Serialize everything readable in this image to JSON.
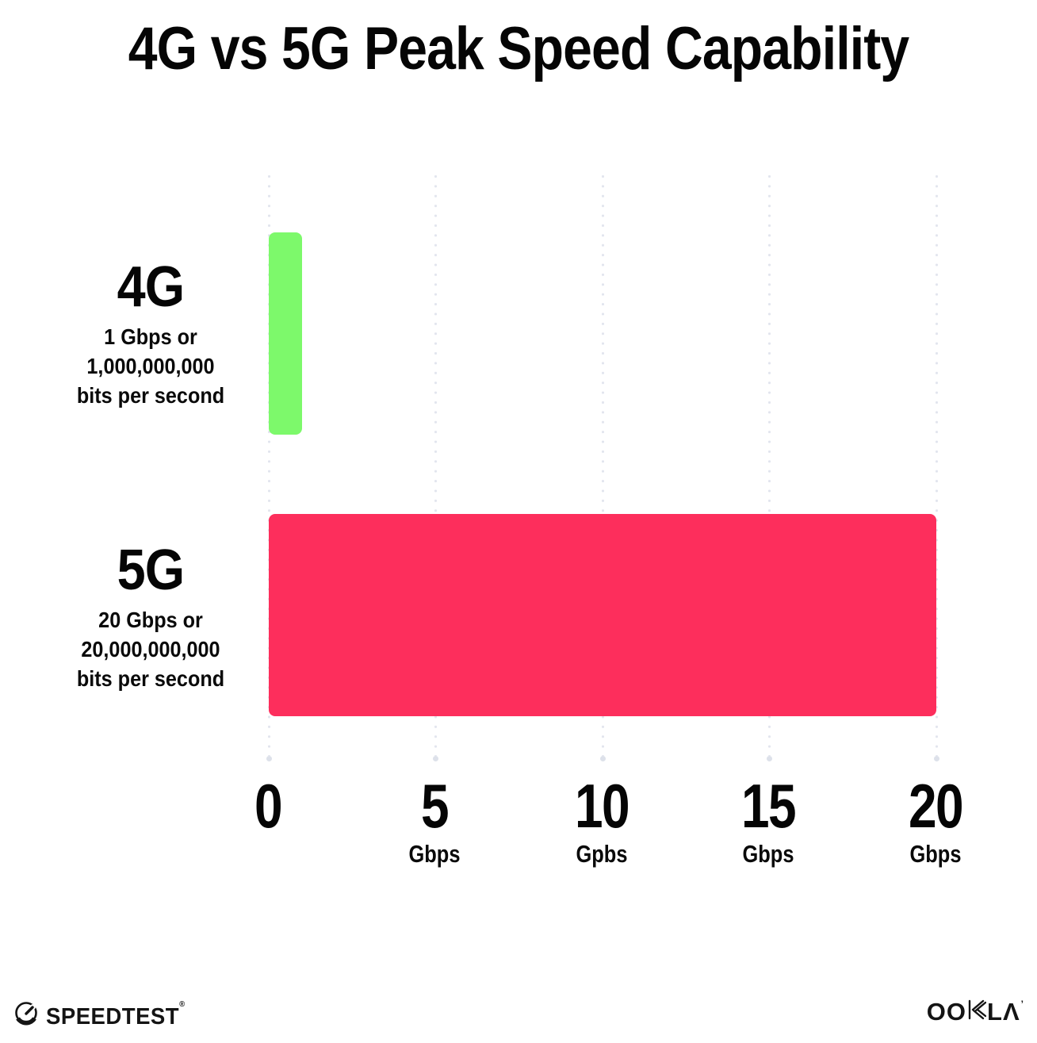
{
  "title": "4G vs 5G Peak Speed Capability",
  "chart_data": {
    "type": "bar",
    "orientation": "horizontal",
    "title": "4G vs 5G Peak Speed Capability",
    "categories": [
      "4G",
      "5G"
    ],
    "values": [
      1,
      20
    ],
    "xlim": [
      0,
      20
    ],
    "grid": "dotted-vertical",
    "legend": "none",
    "rows": [
      {
        "label": "4G",
        "value": 1,
        "color": "#7df96b",
        "description_lines": [
          "1 Gbps or",
          "1,000,000,000",
          "bits per second"
        ]
      },
      {
        "label": "5G",
        "value": 20,
        "color": "#fd2e5c",
        "description_lines": [
          "20 Gbps or",
          "20,000,000,000",
          "bits per second"
        ]
      }
    ],
    "x_ticks": [
      {
        "label": "0",
        "unit": "",
        "value": 0
      },
      {
        "label": "5",
        "unit": "Gbps",
        "value": 5
      },
      {
        "label": "10",
        "unit": "Gpbs",
        "value": 10
      },
      {
        "label": "15",
        "unit": "Gbps",
        "value": 15
      },
      {
        "label": "20",
        "unit": "Gbps",
        "value": 20
      }
    ]
  },
  "colors": {
    "background": "#ffffff",
    "bar_4g": "#7df96b",
    "bar_5g": "#fd2e5c",
    "grid_dot": "#e2e5ee",
    "text": "#050505"
  },
  "footer": {
    "speedtest_label": "SPEEDTEST",
    "speedtest_mark": "®",
    "speedtest_icon": "speedometer-gauge-icon",
    "ookla_label_left": "OO",
    "ookla_label_right": "LΛ",
    "ookla_mark": "’",
    "ookla_icon": "hatched-k-icon"
  }
}
